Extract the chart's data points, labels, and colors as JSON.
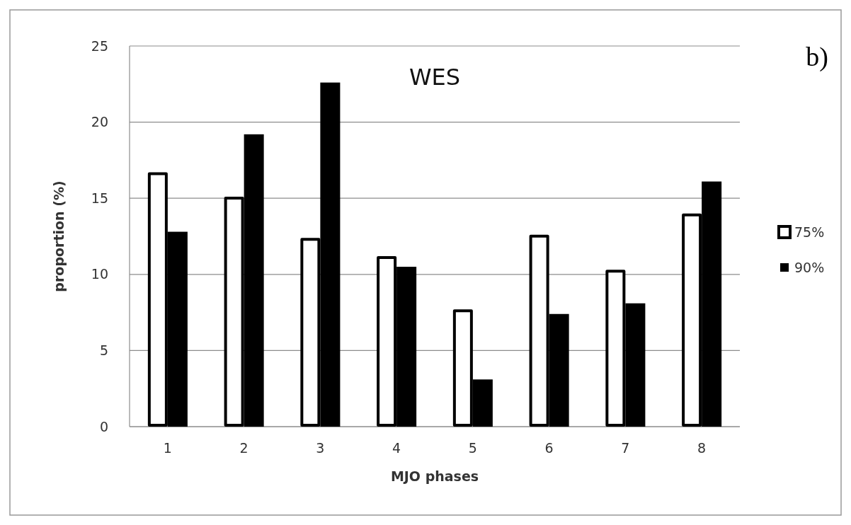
{
  "chart_data": {
    "type": "bar",
    "title": "WES",
    "xlabel": "MJO phases",
    "ylabel": "proportion (%)",
    "annotations": [
      "b)"
    ],
    "categories": [
      "1",
      "2",
      "3",
      "4",
      "5",
      "6",
      "7",
      "8"
    ],
    "series": [
      {
        "name": "75%",
        "color": "#ffffff",
        "values": [
          16.7,
          15.1,
          12.4,
          11.2,
          7.7,
          12.6,
          10.3,
          14.0
        ]
      },
      {
        "name": "90%",
        "color": "#000000",
        "values": [
          12.8,
          19.2,
          22.6,
          10.5,
          3.1,
          7.4,
          8.1,
          16.1
        ]
      }
    ],
    "ylim": [
      0,
      25
    ],
    "yticks": [
      0,
      5,
      10,
      15,
      20,
      25
    ],
    "grid": "y",
    "legend": "right"
  }
}
